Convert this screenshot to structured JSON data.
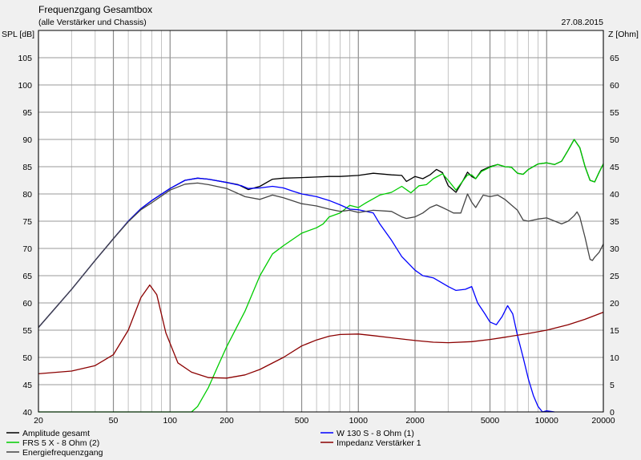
{
  "header": {
    "title": "Frequenzgang Gesamtbox",
    "subtitle": "(alle Verstärker und Chassis)",
    "date": "27.08.2015"
  },
  "chart_data": {
    "type": "line",
    "x_scale": "log",
    "xlim": [
      20,
      20000
    ],
    "x_ticks": [
      20,
      50,
      100,
      200,
      500,
      1000,
      2000,
      5000,
      10000,
      20000
    ],
    "y_left": {
      "label": "SPL [dB]",
      "lim": [
        40,
        110
      ],
      "ticks": [
        40,
        45,
        50,
        55,
        60,
        65,
        70,
        75,
        80,
        85,
        90,
        95,
        100,
        105
      ]
    },
    "y_right": {
      "label": "Z [Ohm]",
      "lim": [
        0,
        70
      ],
      "ticks": [
        0,
        5,
        10,
        15,
        20,
        25,
        30,
        35,
        40,
        45,
        50,
        55,
        60,
        65
      ]
    },
    "grid": true,
    "legend_position": "bottom",
    "series": [
      {
        "name": "Amplitude gesamt",
        "color": "#000000",
        "axis": "left",
        "points": [
          [
            20,
            55.5
          ],
          [
            30,
            62.5
          ],
          [
            40,
            67.8
          ],
          [
            50,
            71.8
          ],
          [
            60,
            75
          ],
          [
            70,
            77.3
          ],
          [
            80,
            78.8
          ],
          [
            100,
            81
          ],
          [
            120,
            82.5
          ],
          [
            140,
            82.9
          ],
          [
            160,
            82.7
          ],
          [
            200,
            82.1
          ],
          [
            230,
            81.7
          ],
          [
            260,
            80.8
          ],
          [
            300,
            81.4
          ],
          [
            350,
            82.7
          ],
          [
            400,
            82.9
          ],
          [
            500,
            83
          ],
          [
            600,
            83.1
          ],
          [
            700,
            83.2
          ],
          [
            800,
            83.2
          ],
          [
            1000,
            83.4
          ],
          [
            1200,
            83.8
          ],
          [
            1500,
            83.5
          ],
          [
            1700,
            83.4
          ],
          [
            1800,
            82.3
          ],
          [
            2000,
            83.2
          ],
          [
            2200,
            82.8
          ],
          [
            2400,
            83.5
          ],
          [
            2600,
            84.5
          ],
          [
            2800,
            83.9
          ],
          [
            3000,
            81.5
          ],
          [
            3300,
            80.3
          ],
          [
            3600,
            82.5
          ],
          [
            3800,
            84
          ],
          [
            4000,
            83.2
          ],
          [
            4200,
            82.8
          ],
          [
            4500,
            84.3
          ],
          [
            5000,
            85
          ],
          [
            5500,
            85.4
          ],
          [
            6000,
            85
          ],
          [
            6500,
            84.9
          ],
          [
            7000,
            83.8
          ],
          [
            7500,
            83.6
          ],
          [
            8000,
            84.5
          ],
          [
            9000,
            85.5
          ],
          [
            10000,
            85.7
          ],
          [
            11000,
            85.4
          ],
          [
            12000,
            86
          ],
          [
            13000,
            88
          ],
          [
            14000,
            90
          ],
          [
            15000,
            88.5
          ],
          [
            16000,
            85
          ],
          [
            17000,
            82.5
          ],
          [
            18000,
            82.2
          ],
          [
            19000,
            84
          ],
          [
            20000,
            85.5
          ]
        ]
      },
      {
        "name": "FRS 5 X - 8 Ohm (2)",
        "color": "#00cc00",
        "axis": "left",
        "points": [
          [
            20,
            40
          ],
          [
            130,
            40
          ],
          [
            140,
            41
          ],
          [
            160,
            44.5
          ],
          [
            180,
            48.5
          ],
          [
            200,
            52
          ],
          [
            250,
            58.5
          ],
          [
            300,
            65
          ],
          [
            350,
            69
          ],
          [
            400,
            70.5
          ],
          [
            500,
            72.8
          ],
          [
            600,
            73.8
          ],
          [
            650,
            74.5
          ],
          [
            700,
            75.8
          ],
          [
            800,
            76.5
          ],
          [
            900,
            77.9
          ],
          [
            1000,
            77.5
          ],
          [
            1100,
            78.4
          ],
          [
            1300,
            79.8
          ],
          [
            1500,
            80.3
          ],
          [
            1700,
            81.4
          ],
          [
            1900,
            80.2
          ],
          [
            2100,
            81.5
          ],
          [
            2300,
            81.7
          ],
          [
            2500,
            82.8
          ],
          [
            2800,
            83.7
          ],
          [
            3000,
            82.5
          ],
          [
            3300,
            80.7
          ],
          [
            3500,
            81.9
          ],
          [
            3800,
            83.5
          ],
          [
            4000,
            83.5
          ],
          [
            4200,
            82.8
          ],
          [
            4500,
            84.1
          ],
          [
            5000,
            84.9
          ],
          [
            5500,
            85.4
          ],
          [
            6000,
            85
          ],
          [
            6500,
            84.9
          ],
          [
            7000,
            83.8
          ],
          [
            7500,
            83.6
          ],
          [
            8000,
            84.5
          ],
          [
            9000,
            85.5
          ],
          [
            10000,
            85.7
          ],
          [
            11000,
            85.4
          ],
          [
            12000,
            86
          ],
          [
            13000,
            88
          ],
          [
            14000,
            90
          ],
          [
            15000,
            88.5
          ],
          [
            16000,
            85
          ],
          [
            17000,
            82.5
          ],
          [
            18000,
            82.2
          ],
          [
            19000,
            84
          ],
          [
            20000,
            85.5
          ]
        ]
      },
      {
        "name": "W 130 S - 8 Ohm (1)",
        "color": "#0000ff",
        "axis": "left",
        "points": [
          [
            20,
            55.5
          ],
          [
            30,
            62.5
          ],
          [
            40,
            67.8
          ],
          [
            50,
            71.8
          ],
          [
            60,
            75
          ],
          [
            70,
            77.3
          ],
          [
            80,
            78.8
          ],
          [
            100,
            81
          ],
          [
            120,
            82.5
          ],
          [
            140,
            82.9
          ],
          [
            160,
            82.7
          ],
          [
            200,
            82.1
          ],
          [
            240,
            81.5
          ],
          [
            260,
            81
          ],
          [
            300,
            81.1
          ],
          [
            350,
            81.4
          ],
          [
            400,
            81.1
          ],
          [
            450,
            80.5
          ],
          [
            500,
            80
          ],
          [
            600,
            79.5
          ],
          [
            700,
            78.8
          ],
          [
            800,
            78
          ],
          [
            900,
            77.2
          ],
          [
            1000,
            77.1
          ],
          [
            1100,
            76.8
          ],
          [
            1200,
            76.5
          ],
          [
            1300,
            74.5
          ],
          [
            1500,
            71.5
          ],
          [
            1700,
            68.5
          ],
          [
            2000,
            66
          ],
          [
            2200,
            65
          ],
          [
            2500,
            64.6
          ],
          [
            3000,
            63
          ],
          [
            3300,
            62.3
          ],
          [
            3700,
            62.5
          ],
          [
            4000,
            63
          ],
          [
            4300,
            60
          ],
          [
            4700,
            58
          ],
          [
            5000,
            56.5
          ],
          [
            5400,
            56
          ],
          [
            5800,
            57.5
          ],
          [
            6200,
            59.5
          ],
          [
            6600,
            58
          ],
          [
            7000,
            54
          ],
          [
            7500,
            50
          ],
          [
            8000,
            46
          ],
          [
            8500,
            43
          ],
          [
            9000,
            41
          ],
          [
            9500,
            40
          ],
          [
            10000,
            40.2
          ],
          [
            11000,
            40
          ]
        ]
      },
      {
        "name": "Impedanz Verstärker 1",
        "color": "#8b0000",
        "axis": "right",
        "points": [
          [
            20,
            7
          ],
          [
            30,
            7.5
          ],
          [
            40,
            8.5
          ],
          [
            50,
            10.5
          ],
          [
            60,
            15
          ],
          [
            70,
            21
          ],
          [
            78,
            23.3
          ],
          [
            85,
            21.5
          ],
          [
            95,
            14.5
          ],
          [
            110,
            9
          ],
          [
            130,
            7.3
          ],
          [
            160,
            6.3
          ],
          [
            200,
            6.2
          ],
          [
            250,
            6.8
          ],
          [
            300,
            7.8
          ],
          [
            400,
            10
          ],
          [
            500,
            12.1
          ],
          [
            600,
            13.2
          ],
          [
            700,
            13.9
          ],
          [
            800,
            14.2
          ],
          [
            1000,
            14.3
          ],
          [
            1200,
            14
          ],
          [
            1500,
            13.6
          ],
          [
            2000,
            13.1
          ],
          [
            2500,
            12.8
          ],
          [
            3000,
            12.7
          ],
          [
            4000,
            12.9
          ],
          [
            5000,
            13.3
          ],
          [
            6000,
            13.7
          ],
          [
            8000,
            14.4
          ],
          [
            10000,
            15
          ],
          [
            13000,
            16
          ],
          [
            16000,
            17
          ],
          [
            20000,
            18.3
          ]
        ]
      },
      {
        "name": "Energiefrequenzgang",
        "color": "#444444",
        "axis": "left",
        "points": [
          [
            20,
            55.5
          ],
          [
            30,
            62.5
          ],
          [
            40,
            67.8
          ],
          [
            50,
            71.8
          ],
          [
            60,
            74.9
          ],
          [
            70,
            77.1
          ],
          [
            80,
            78.4
          ],
          [
            100,
            80.7
          ],
          [
            120,
            81.8
          ],
          [
            140,
            82
          ],
          [
            160,
            81.7
          ],
          [
            200,
            81
          ],
          [
            250,
            79.5
          ],
          [
            300,
            79
          ],
          [
            350,
            79.8
          ],
          [
            400,
            79.3
          ],
          [
            500,
            78.2
          ],
          [
            600,
            77.8
          ],
          [
            700,
            77.2
          ],
          [
            800,
            76.8
          ],
          [
            900,
            77
          ],
          [
            1000,
            76.6
          ],
          [
            1200,
            77
          ],
          [
            1500,
            76.8
          ],
          [
            1700,
            75.8
          ],
          [
            1800,
            75.5
          ],
          [
            2000,
            75.8
          ],
          [
            2200,
            76.5
          ],
          [
            2400,
            77.5
          ],
          [
            2600,
            78
          ],
          [
            2800,
            77.5
          ],
          [
            3000,
            77
          ],
          [
            3200,
            76.5
          ],
          [
            3500,
            76.5
          ],
          [
            3800,
            80
          ],
          [
            4000,
            78.5
          ],
          [
            4200,
            77.5
          ],
          [
            4600,
            79.8
          ],
          [
            5000,
            79.5
          ],
          [
            5500,
            79.8
          ],
          [
            6000,
            79
          ],
          [
            7000,
            77
          ],
          [
            7500,
            75.2
          ],
          [
            8000,
            75
          ],
          [
            9000,
            75.4
          ],
          [
            10000,
            75.6
          ],
          [
            12000,
            74.5
          ],
          [
            13000,
            75
          ],
          [
            14000,
            76
          ],
          [
            14500,
            76.7
          ],
          [
            15000,
            75.8
          ],
          [
            16000,
            72
          ],
          [
            17000,
            68
          ],
          [
            17500,
            67.8
          ],
          [
            18000,
            68.4
          ],
          [
            19000,
            69.3
          ],
          [
            20000,
            70.8
          ]
        ]
      }
    ]
  }
}
